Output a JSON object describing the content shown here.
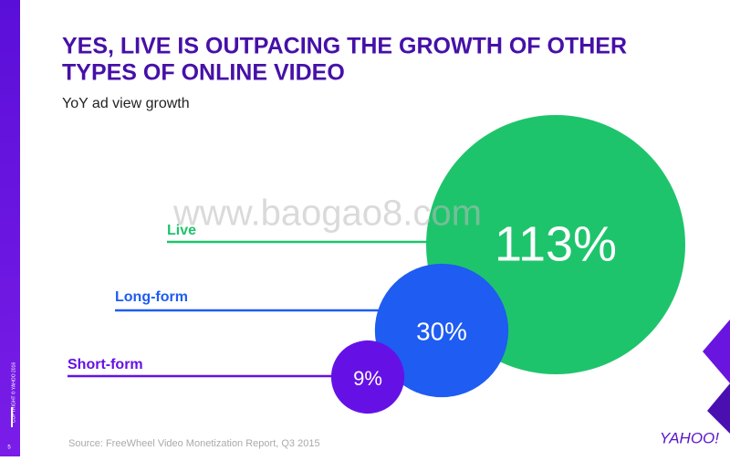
{
  "chart_data": {
    "type": "bubble",
    "title": "YES, LIVE IS OUTPACING THE GROWTH OF OTHER TYPES OF ONLINE VIDEO",
    "title_lines": [
      "YES, LIVE IS OUTPACING THE GROWTH OF OTHER",
      "TYPES OF ONLINE VIDEO"
    ],
    "subtitle": "YoY ad view growth",
    "categories": [
      "Live",
      "Long-form",
      "Short-form"
    ],
    "values": [
      113,
      30,
      9
    ],
    "value_labels": [
      "113%",
      "30%",
      "9%"
    ],
    "colors": [
      "#1ec46c",
      "#1e5cf2",
      "#6511e6"
    ],
    "source": "Source: FreeWheel Video Monetization Report, Q3 2015",
    "watermark": "www.baogao8.com",
    "copyright": "COPYRIGHT © YAHOO 2016",
    "page_number": "5",
    "logo": "YAHOO!"
  }
}
